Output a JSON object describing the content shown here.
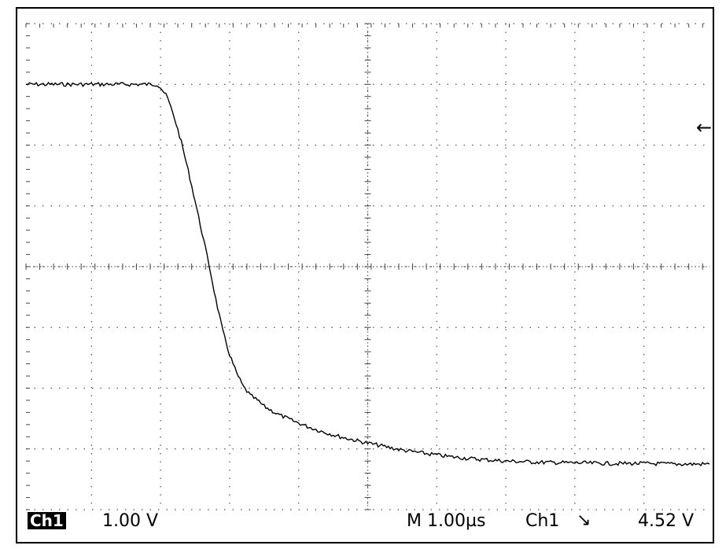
{
  "chart_data": {
    "type": "line",
    "title": "",
    "xlabel": "",
    "ylabel": "",
    "xlim": [
      -1.95,
      7.95
    ],
    "ylim": [
      -4.0,
      4.0
    ],
    "x_unit": "µs",
    "y_unit": "V",
    "grid": true,
    "series": [
      {
        "x": [
          -1.95,
          -1.5,
          -1.0,
          -0.5,
          -0.05,
          0.0,
          0.1,
          0.2,
          0.3,
          0.4,
          0.5,
          0.6,
          0.7,
          0.8,
          0.9,
          1.0,
          1.1,
          1.2,
          1.3,
          1.4,
          1.5,
          1.7,
          1.9,
          2.1,
          2.3,
          2.6,
          2.9,
          3.2,
          3.5,
          3.8,
          4.2,
          4.6,
          5.0,
          5.5,
          6.0,
          6.5,
          7.0,
          7.5,
          7.95
        ],
        "y": [
          3.0,
          3.0,
          3.0,
          3.0,
          3.0,
          2.95,
          2.78,
          2.45,
          2.05,
          1.58,
          1.08,
          0.56,
          0.04,
          -0.54,
          -1.06,
          -1.45,
          -1.75,
          -1.98,
          -2.12,
          -2.2,
          -2.3,
          -2.43,
          -2.53,
          -2.62,
          -2.7,
          -2.8,
          -2.88,
          -2.95,
          -3.02,
          -3.07,
          -3.13,
          -3.17,
          -3.2,
          -3.22,
          -3.23,
          -3.24,
          -3.24,
          -3.25,
          -3.25
        ]
      }
    ]
  },
  "readouts": {
    "channel": "Ch1",
    "volts_per_div": "1.00 V",
    "timebase": "M 1.00µs",
    "trigger_source": "Ch1",
    "trigger_slope": "↘",
    "trigger_level": "4.52 V"
  },
  "trigger_marker": "←"
}
